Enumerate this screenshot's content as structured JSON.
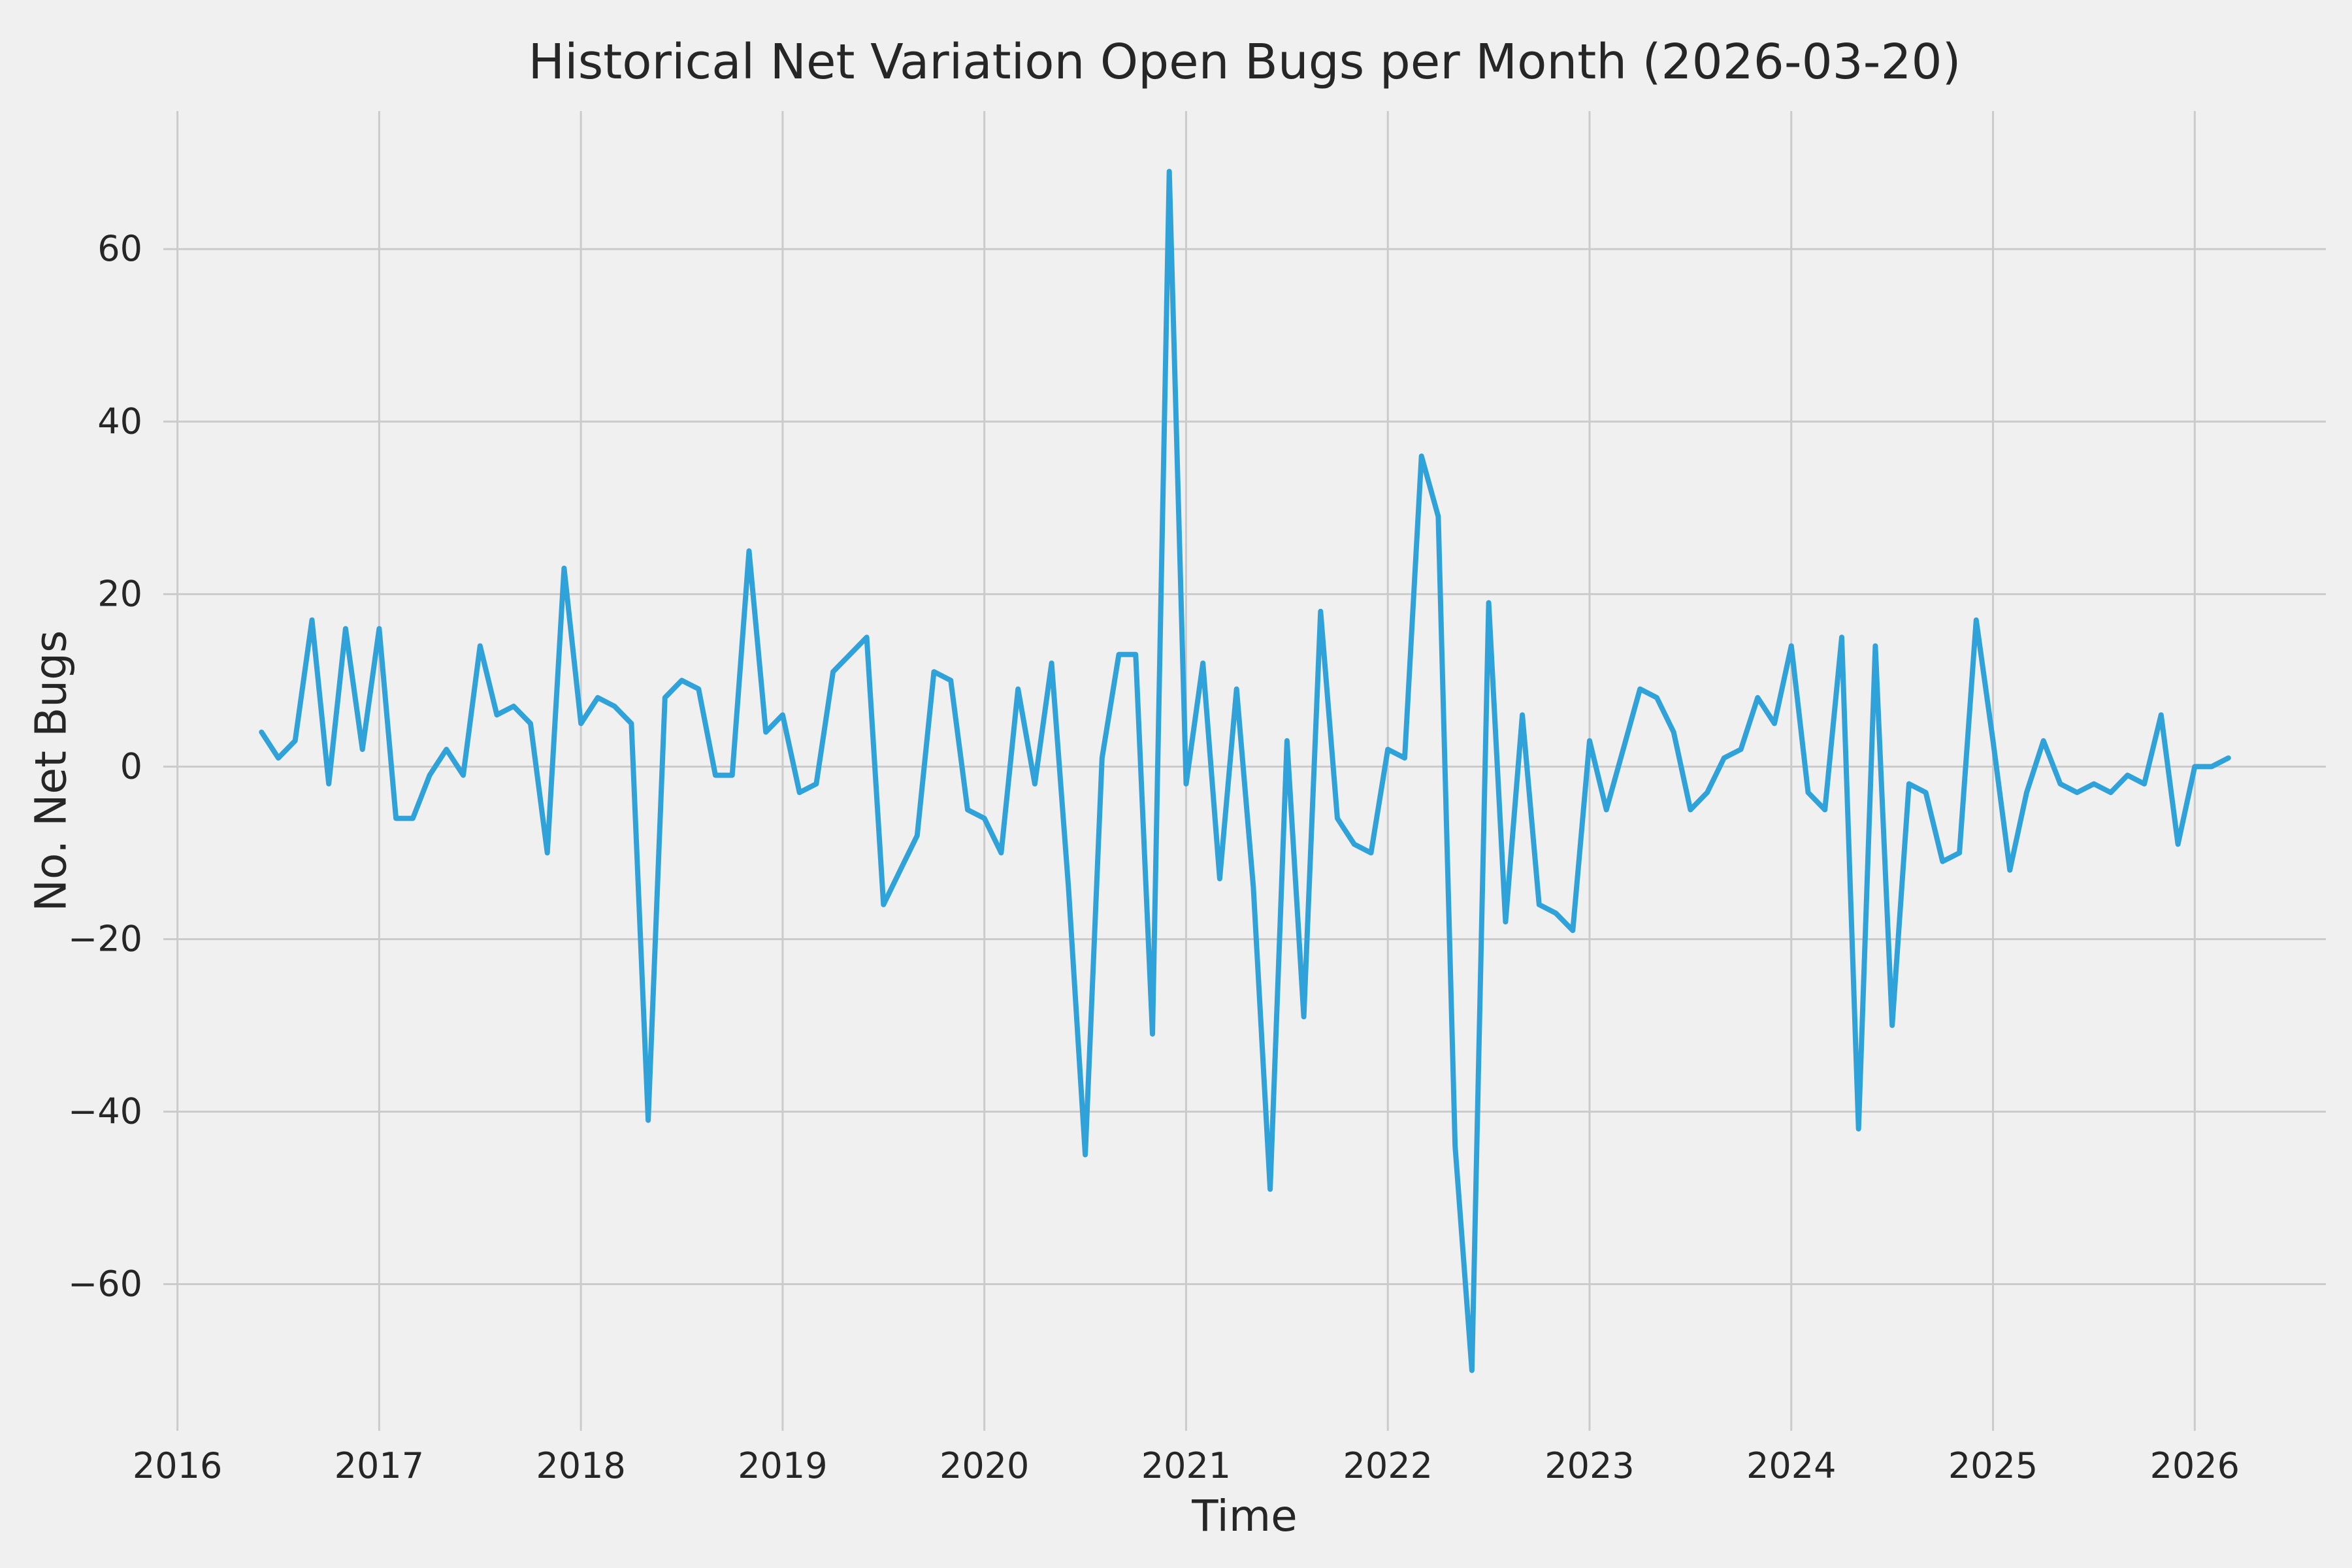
{
  "chart_data": {
    "type": "line",
    "title": "Historical Net Variation Open Bugs per Month (2026-03-20)",
    "xlabel": "Time",
    "ylabel": "No. Net Bugs",
    "legend": "none",
    "grid": true,
    "x_unit": "decimal_year_monthly",
    "x_start": 2016.4167,
    "x_step": 0.0833333,
    "x_ticks": [
      2016,
      2017,
      2018,
      2019,
      2020,
      2021,
      2022,
      2023,
      2024,
      2025,
      2026
    ],
    "y_ticks": [
      -60,
      -40,
      -20,
      0,
      20,
      40,
      60
    ],
    "xlim": [
      2015.93,
      2026.65
    ],
    "ylim": [
      -77,
      76
    ],
    "colors": {
      "line": "#30a2da",
      "background": "#f0f0f0",
      "grid": "#cbcbcb",
      "text": "#262626"
    },
    "values": [
      4,
      1,
      3,
      17,
      -2,
      16,
      2,
      16,
      -6,
      -6,
      -1,
      2,
      -1,
      14,
      6,
      7,
      5,
      -10,
      23,
      5,
      8,
      7,
      5,
      -41,
      8,
      10,
      9,
      -1,
      -1,
      25,
      4,
      6,
      -3,
      -2,
      11,
      13,
      15,
      -16,
      -12,
      -8,
      11,
      10,
      -5,
      -6,
      -10,
      9,
      -2,
      12,
      -14,
      -45,
      1,
      13,
      13,
      -31,
      69,
      -2,
      12,
      -13,
      9,
      -14,
      -49,
      3,
      -29,
      18,
      -6,
      -9,
      -10,
      2,
      1,
      36,
      29,
      -44,
      -70,
      19,
      -18,
      6,
      -16,
      -17,
      -19,
      3,
      -5,
      2,
      9,
      8,
      4,
      -5,
      -3,
      1,
      2,
      8,
      5,
      14,
      -3,
      -5,
      15,
      -42,
      14,
      -30,
      -2,
      -3,
      -11,
      -10,
      17,
      3,
      -12,
      -3,
      3,
      -2,
      -3,
      -2,
      -3,
      -1,
      -2,
      6,
      -9,
      0,
      0,
      1
    ]
  }
}
